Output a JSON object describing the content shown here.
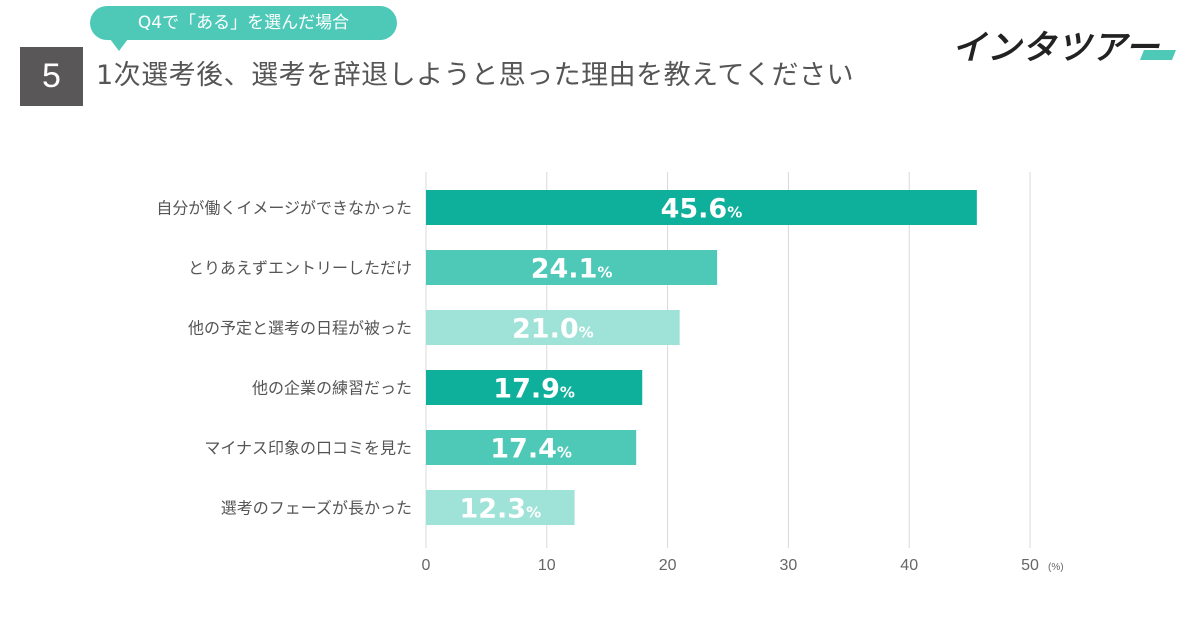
{
  "header": {
    "question_tag": "Q4で「ある」を選んだ場合",
    "section_number": "5",
    "title": "1次選考後、選考を辞退しようと思った理由を教えてください",
    "logo_text": "インタツアー"
  },
  "colors": {
    "accent": "#4ec9b8",
    "dark_box": "#595757",
    "bar_colors": [
      "#0fb09b",
      "#4ec9b8",
      "#9fe2d8",
      "#0fb09b",
      "#4ec9b8",
      "#9fe2d8"
    ]
  },
  "chart_data": {
    "type": "bar",
    "orientation": "horizontal",
    "categories": [
      "自分が働くイメージができなかった",
      "とりあえずエントリーしただけ",
      "他の予定と選考の日程が被った",
      "他の企業の練習だった",
      "マイナス印象の口コミを見た",
      "選考のフェーズが長かった"
    ],
    "values": [
      45.6,
      24.1,
      21.0,
      17.9,
      17.4,
      12.3
    ],
    "value_labels": [
      "45.6",
      "24.1",
      "21.0",
      "17.9",
      "17.4",
      "12.3"
    ],
    "value_suffix": "%",
    "xlim": [
      0,
      50
    ],
    "xticks": [
      0,
      10,
      20,
      30,
      40,
      50
    ],
    "xunit": "(%)",
    "grid": true
  }
}
